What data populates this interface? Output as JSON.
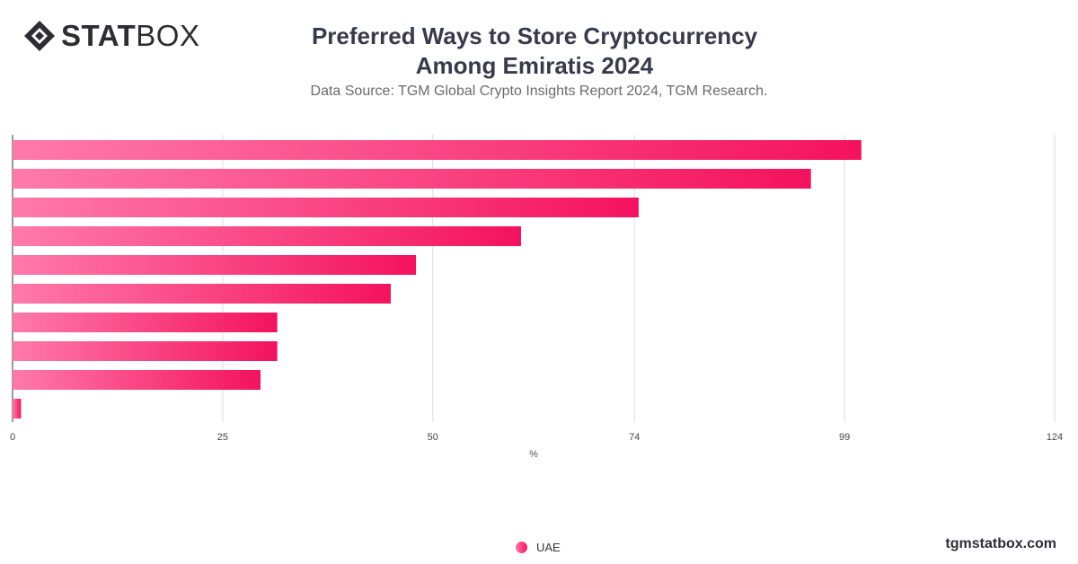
{
  "brand": {
    "logo_bold": "STAT",
    "logo_light": "BOX"
  },
  "header": {
    "title": "Preferred Ways to Store Cryptocurrency Among Emiratis 2024",
    "subtitle": "Data Source: TGM Global Crypto Insights Report 2024, TGM Research."
  },
  "chart_data": {
    "type": "bar",
    "orientation": "horizontal",
    "xlabel": "%",
    "xlim": [
      0,
      124
    ],
    "x_ticks": [
      0,
      25,
      50,
      74,
      99,
      124
    ],
    "grid": true,
    "legend_position": "bottom",
    "categories": [
      "",
      "",
      "",
      "",
      "",
      "",
      "",
      "",
      "",
      ""
    ],
    "series": [
      {
        "name": "UAE",
        "color_start": "#ff7aa9",
        "color_end": "#f4125e",
        "values": [
          101,
          95,
          74.5,
          60.5,
          48,
          45,
          31.5,
          31.5,
          29.5,
          1
        ]
      }
    ]
  },
  "footer": {
    "legend_label": "UAE",
    "watermark": "tgmstatbox.com"
  }
}
